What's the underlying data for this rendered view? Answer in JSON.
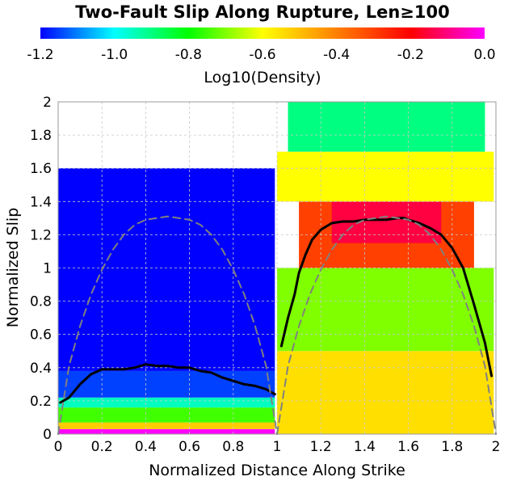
{
  "chart_data": {
    "type": "heatmap",
    "title": "Two-Fault Slip Along Rupture, Len≥100",
    "xlabel": "Normalized Distance Along Strike",
    "ylabel": "Normalized Slip",
    "xlim": [
      0,
      2
    ],
    "ylim": [
      0,
      2
    ],
    "xticks": [
      "0",
      "0.2",
      "0.4",
      "0.6",
      "0.8",
      "1",
      "1.2",
      "1.4",
      "1.6",
      "1.8",
      "2"
    ],
    "yticks": [
      "0",
      "0.2",
      "0.4",
      "0.6",
      "0.8",
      "1",
      "1.2",
      "1.4",
      "1.6",
      "1.8",
      "2"
    ],
    "grid": true,
    "colorbar": {
      "label": "Log10(Density)",
      "range": [
        -1.2,
        0.0
      ],
      "ticks": [
        "-1.2",
        "-1.0",
        "-0.8",
        "-0.6",
        "-0.4",
        "-0.2",
        "0.0"
      ],
      "colors": [
        "#0000ff",
        "#00ffff",
        "#00ff00",
        "#ffff00",
        "#ff8000",
        "#ff0000",
        "#ff00ff"
      ]
    },
    "series": [
      {
        "style": "solid",
        "color": "#000000",
        "x": [
          0.01,
          0.05,
          0.1,
          0.15,
          0.2,
          0.25,
          0.3,
          0.35,
          0.4,
          0.45,
          0.5,
          0.55,
          0.6,
          0.65,
          0.7,
          0.75,
          0.8,
          0.85,
          0.9,
          0.95,
          0.99
        ],
        "y": [
          0.19,
          0.22,
          0.3,
          0.36,
          0.39,
          0.39,
          0.39,
          0.4,
          0.42,
          0.41,
          0.41,
          0.4,
          0.4,
          0.38,
          0.37,
          0.34,
          0.32,
          0.3,
          0.29,
          0.27,
          0.24
        ]
      },
      {
        "style": "solid",
        "color": "#000000",
        "x": [
          1.02,
          1.05,
          1.08,
          1.1,
          1.13,
          1.16,
          1.2,
          1.25,
          1.3,
          1.35,
          1.4,
          1.45,
          1.5,
          1.55,
          1.58,
          1.6,
          1.65,
          1.7,
          1.75,
          1.8,
          1.85,
          1.9,
          1.95,
          1.98
        ],
        "y": [
          0.53,
          0.7,
          0.84,
          0.97,
          1.08,
          1.17,
          1.23,
          1.27,
          1.28,
          1.28,
          1.29,
          1.29,
          1.29,
          1.3,
          1.3,
          1.29,
          1.27,
          1.24,
          1.2,
          1.12,
          1.0,
          0.78,
          0.55,
          0.35
        ]
      },
      {
        "style": "dashed",
        "color": "#808080",
        "x": [
          0.0,
          0.05,
          0.1,
          0.15,
          0.2,
          0.25,
          0.3,
          0.35,
          0.4,
          0.45,
          0.5,
          0.55,
          0.6,
          0.65,
          0.7,
          0.75,
          0.8,
          0.85,
          0.9,
          0.95,
          1.0
        ],
        "y": [
          0.0,
          0.41,
          0.65,
          0.84,
          0.99,
          1.11,
          1.2,
          1.26,
          1.29,
          1.3,
          1.31,
          1.3,
          1.29,
          1.26,
          1.2,
          1.11,
          0.99,
          0.84,
          0.65,
          0.41,
          0.0
        ]
      },
      {
        "style": "dashed",
        "color": "#808080",
        "x": [
          1.0,
          1.05,
          1.1,
          1.15,
          1.2,
          1.25,
          1.3,
          1.35,
          1.4,
          1.45,
          1.5,
          1.55,
          1.6,
          1.65,
          1.7,
          1.75,
          1.8,
          1.85,
          1.9,
          1.95,
          2.0
        ],
        "y": [
          0.0,
          0.41,
          0.65,
          0.84,
          0.99,
          1.11,
          1.2,
          1.26,
          1.29,
          1.3,
          1.31,
          1.3,
          1.29,
          1.26,
          1.2,
          1.11,
          0.99,
          0.84,
          0.65,
          0.41,
          0.0
        ]
      }
    ],
    "density_bands": [
      {
        "x": [
          0.0,
          0.99
        ],
        "y": [
          0.0,
          0.03
        ],
        "value": 0.0
      },
      {
        "x": [
          0.0,
          0.99
        ],
        "y": [
          0.03,
          0.07
        ],
        "value": -0.52
      },
      {
        "x": [
          0.0,
          0.99
        ],
        "y": [
          0.07,
          0.16
        ],
        "value": -0.75
      },
      {
        "x": [
          0.0,
          0.99
        ],
        "y": [
          0.16,
          0.22
        ],
        "value": -0.95
      },
      {
        "x": [
          0.0,
          0.99
        ],
        "y": [
          0.22,
          0.38
        ],
        "value": -1.15
      },
      {
        "x": [
          0.0,
          0.99
        ],
        "y": [
          0.38,
          1.6
        ],
        "value": -1.2
      },
      {
        "x": [
          1.0,
          1.99
        ],
        "y": [
          0.0,
          0.5
        ],
        "value": -0.55
      },
      {
        "x": [
          1.0,
          1.99
        ],
        "y": [
          0.5,
          1.0
        ],
        "value": -0.7
      },
      {
        "x": [
          1.1,
          1.9
        ],
        "y": [
          1.0,
          1.4
        ],
        "value": -0.3
      },
      {
        "x": [
          1.25,
          1.75
        ],
        "y": [
          1.15,
          1.4
        ],
        "value": -0.15
      },
      {
        "x": [
          1.0,
          1.99
        ],
        "y": [
          1.4,
          1.7
        ],
        "value": -0.6
      },
      {
        "x": [
          1.05,
          1.95
        ],
        "y": [
          1.7,
          2.0
        ],
        "value": -0.9
      }
    ]
  }
}
